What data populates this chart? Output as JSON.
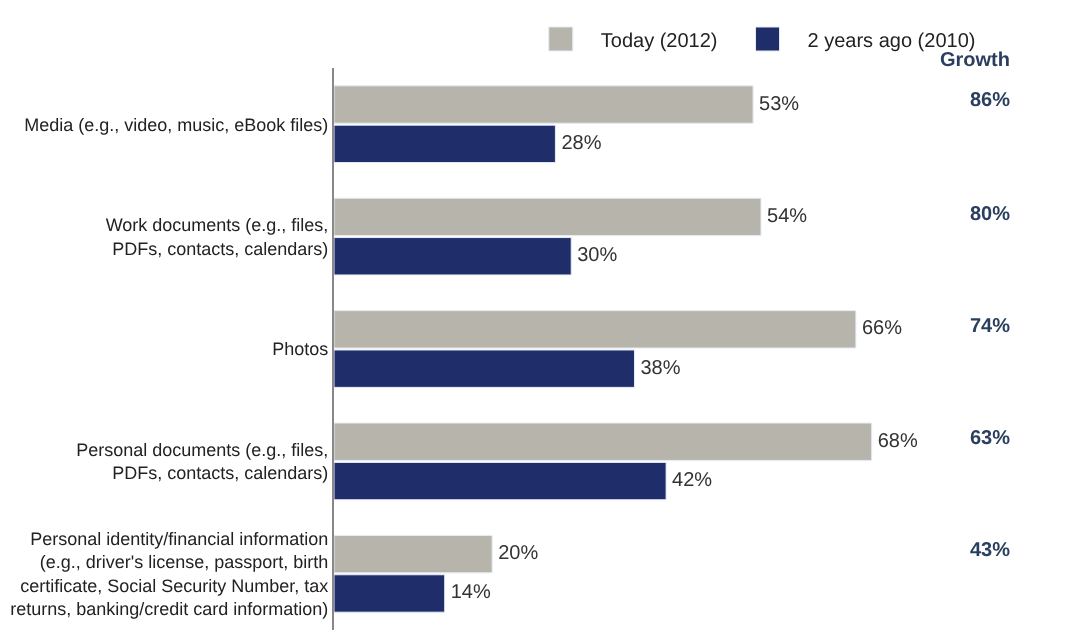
{
  "chart_data": {
    "type": "bar",
    "orientation": "horizontal",
    "categories": [
      "Media (e.g., video, music, eBook files)",
      "Work documents (e.g., files,\nPDFs, contacts, calendars)",
      "Photos",
      "Personal documents (e.g., files,\nPDFs, contacts, calendars)",
      "Personal identity/financial information\n(e.g., driver's license, passport, birth\ncertificate, Social Security Number, tax\nreturns, banking/credit card information)"
    ],
    "series": [
      {
        "name": "Today (2012)",
        "color": "#b7b5ab",
        "values": [
          53,
          54,
          66,
          68,
          20
        ],
        "value_labels": [
          "53%",
          "54%",
          "66%",
          "68%",
          "20%"
        ]
      },
      {
        "name": "2 years ago (2010)",
        "color": "#1f2d6b",
        "values": [
          28,
          30,
          38,
          42,
          14
        ],
        "value_labels": [
          "28%",
          "30%",
          "38%",
          "42%",
          "14%"
        ]
      }
    ],
    "legend": "top",
    "annotations": [
      "Growth",
      "86%",
      "80%",
      "74%",
      "63%",
      "43%"
    ]
  }
}
